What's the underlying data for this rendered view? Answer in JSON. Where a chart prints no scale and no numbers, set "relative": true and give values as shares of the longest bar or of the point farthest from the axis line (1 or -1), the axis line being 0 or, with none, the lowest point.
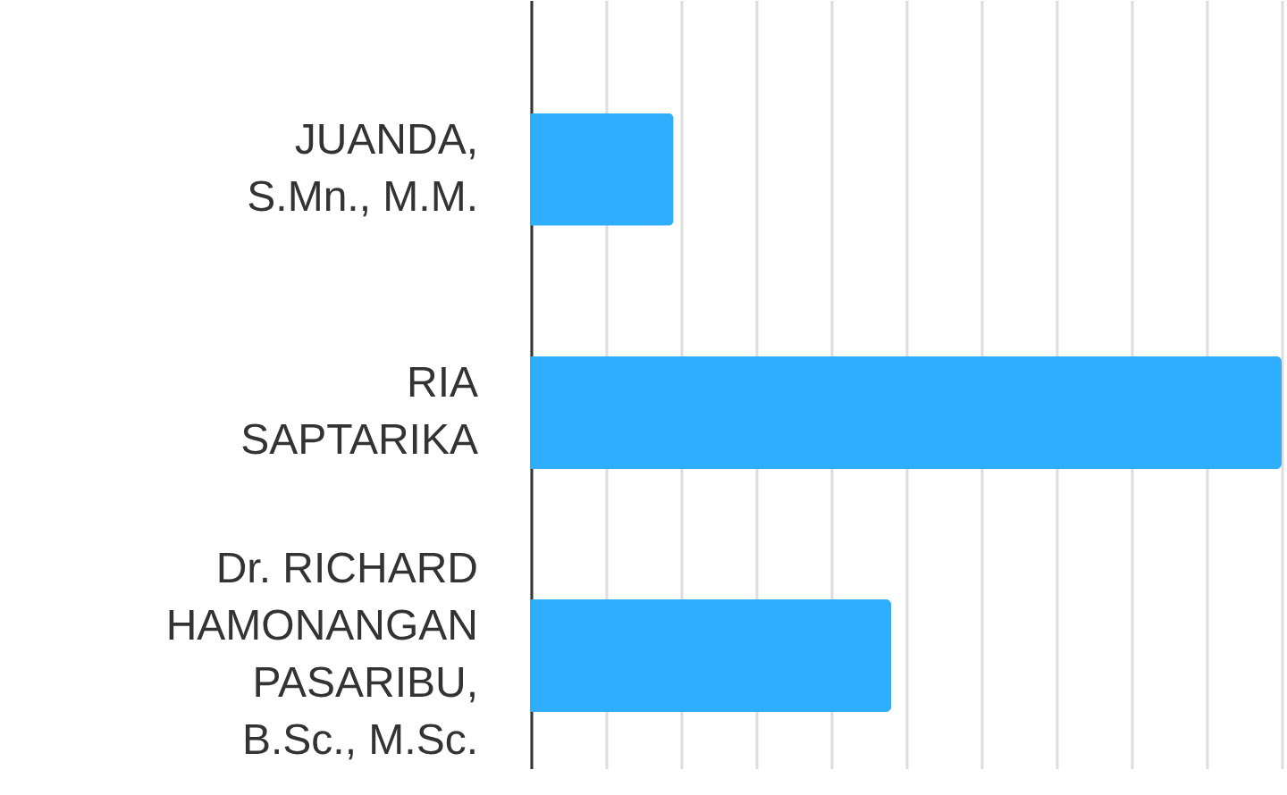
{
  "chart_data": {
    "type": "bar",
    "orientation": "horizontal",
    "relative": true,
    "grid": "x",
    "categories": [
      "JUANDA, S.Mn., M.M.",
      "RIA SAPTARIKA",
      "Dr. RICHARD HAMONANGAN PASARIBU, B.Sc., M.Sc."
    ],
    "values": [
      0.19,
      1,
      0.48
    ],
    "color": "#2eaefc"
  }
}
